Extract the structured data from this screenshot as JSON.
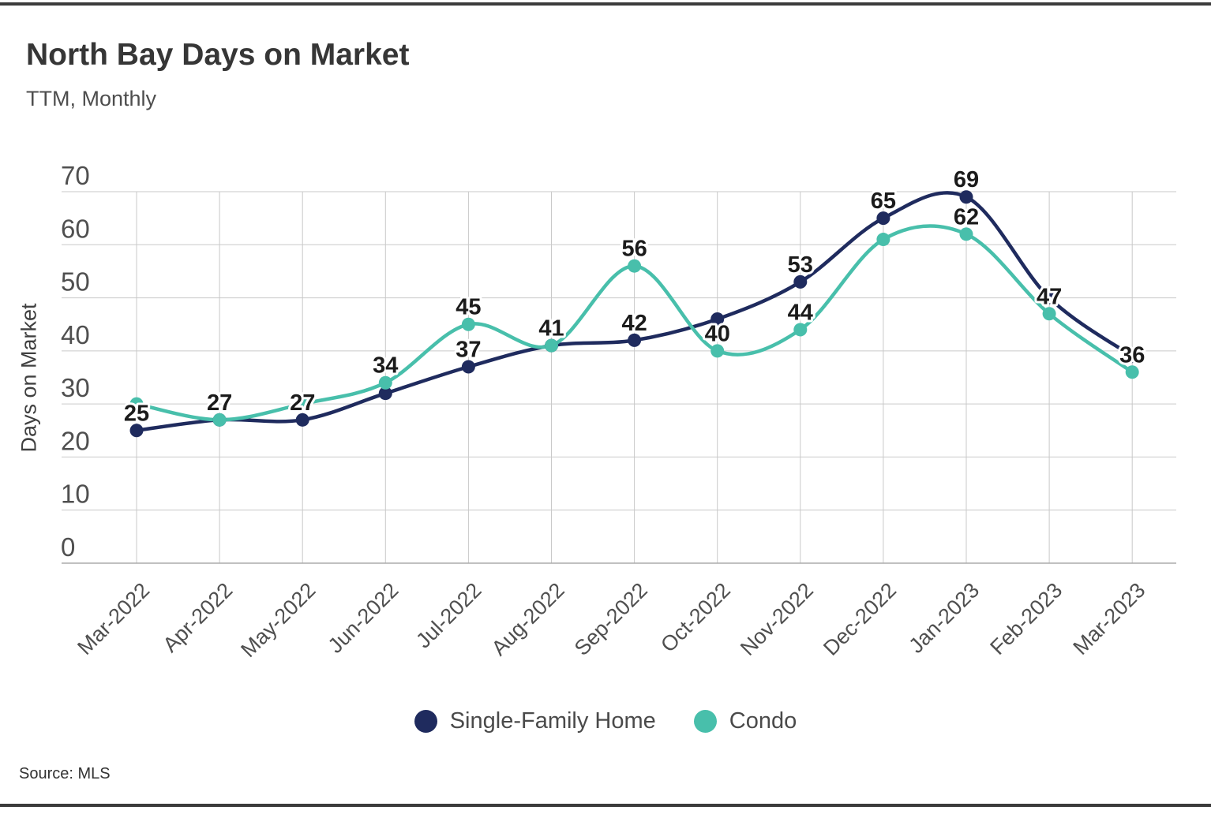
{
  "header": {
    "title": "North Bay Days on Market",
    "subtitle": "TTM, Monthly"
  },
  "chart_data": {
    "type": "line",
    "title": "North Bay Days on Market",
    "subtitle": "TTM, Monthly",
    "xlabel": "",
    "ylabel": "Days on Market",
    "ylim": [
      0,
      70
    ],
    "yticks": [
      0,
      10,
      20,
      30,
      40,
      50,
      60,
      70
    ],
    "grid": "both",
    "categories": [
      "Mar-2022",
      "Apr-2022",
      "May-2022",
      "Jun-2022",
      "Jul-2022",
      "Aug-2022",
      "Sep-2022",
      "Oct-2022",
      "Nov-2022",
      "Dec-2022",
      "Jan-2023",
      "Feb-2023",
      "Mar-2023"
    ],
    "series": [
      {
        "name": "Single-Family Home",
        "color": "#1F2B5E",
        "values": [
          25,
          27,
          27,
          32,
          37,
          41,
          42,
          46,
          53,
          65,
          69,
          50,
          39
        ],
        "point_labels": [
          "25",
          null,
          "27",
          null,
          "37",
          null,
          "42",
          null,
          "53",
          "65",
          "69",
          null,
          null
        ]
      },
      {
        "name": "Condo",
        "color": "#48BFAB",
        "values": [
          30,
          27,
          30,
          34,
          45,
          41,
          56,
          40,
          44,
          61,
          62,
          47,
          36
        ],
        "point_labels": [
          null,
          "27",
          null,
          "34",
          "45",
          "41",
          "56",
          "40",
          "44",
          null,
          "62",
          "47",
          "36"
        ]
      }
    ],
    "legend": {
      "position": "bottom-center",
      "items": [
        {
          "label": "Single-Family Home",
          "color": "#1F2B5E"
        },
        {
          "label": "Condo",
          "color": "#48BFAB"
        }
      ]
    }
  },
  "source": {
    "label": "Source: MLS"
  }
}
